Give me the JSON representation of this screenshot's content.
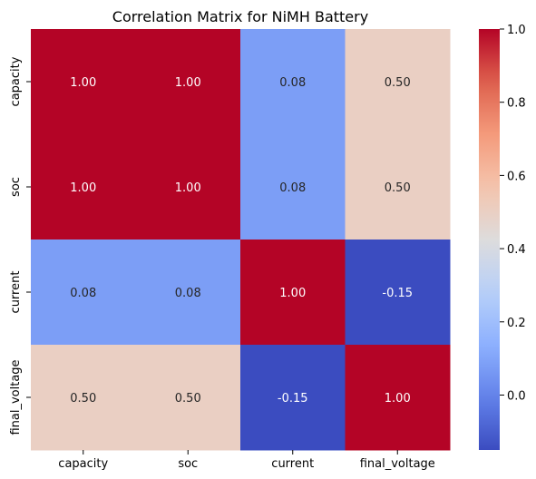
{
  "chart_data": {
    "type": "heatmap",
    "title": "Correlation Matrix for NiMH Battery",
    "rows": [
      "capacity",
      "soc",
      "current",
      "final_voltage"
    ],
    "columns": [
      "capacity",
      "soc",
      "current",
      "final_voltage"
    ],
    "values": [
      [
        1.0,
        1.0,
        0.08,
        0.5
      ],
      [
        1.0,
        1.0,
        0.08,
        0.5
      ],
      [
        0.08,
        0.08,
        1.0,
        -0.15
      ],
      [
        0.5,
        0.5,
        -0.15,
        1.0
      ]
    ],
    "cell_labels": [
      [
        "1.00",
        "1.00",
        "0.08",
        "0.50"
      ],
      [
        "1.00",
        "1.00",
        "0.08",
        "0.50"
      ],
      [
        "0.08",
        "0.08",
        "1.00",
        "-0.15"
      ],
      [
        "0.50",
        "0.50",
        "-0.15",
        "1.00"
      ]
    ],
    "colormap": "coolwarm",
    "colorbar": {
      "min": -0.15,
      "max": 1.0,
      "ticks": [
        0.0,
        0.2,
        0.4,
        0.6,
        0.8,
        1.0
      ],
      "tick_labels": [
        "0.0",
        "0.2",
        "0.4",
        "0.6",
        "0.8",
        "1.0"
      ]
    },
    "annotation_colors": {
      "light": "#ffffff",
      "dark": "#262626"
    }
  }
}
